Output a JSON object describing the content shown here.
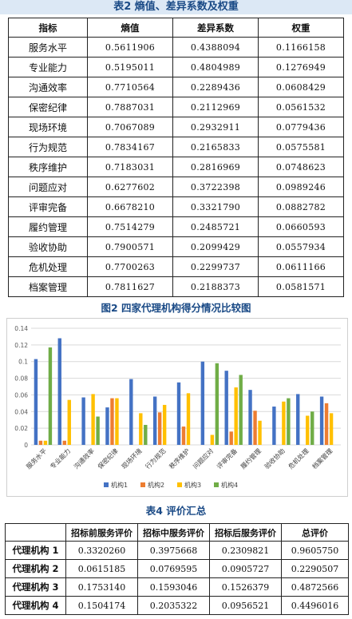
{
  "table2": {
    "caption": "表2 熵值、差异系数及权重",
    "headers": [
      "指标",
      "熵值",
      "差异系数",
      "权重"
    ],
    "rows": [
      [
        "服务水平",
        "0.5611906",
        "0.4388094",
        "0.1166158"
      ],
      [
        "专业能力",
        "0.5195011",
        "0.4804989",
        "0.1276949"
      ],
      [
        "沟通效率",
        "0.7710564",
        "0.2289436",
        "0.0608429"
      ],
      [
        "保密纪律",
        "0.7887031",
        "0.2112969",
        "0.0561532"
      ],
      [
        "现场环境",
        "0.7067089",
        "0.2932911",
        "0.0779436"
      ],
      [
        "行为规范",
        "0.7834167",
        "0.2165833",
        "0.0575581"
      ],
      [
        "秩序维护",
        "0.7183031",
        "0.2816969",
        "0.0748623"
      ],
      [
        "问题应对",
        "0.6277602",
        "0.3722398",
        "0.0989246"
      ],
      [
        "评审完备",
        "0.6678210",
        "0.3321790",
        "0.0882782"
      ],
      [
        "履约管理",
        "0.7514279",
        "0.2485721",
        "0.0660593"
      ],
      [
        "验收协助",
        "0.7900571",
        "0.2099429",
        "0.0557934"
      ],
      [
        "危机处理",
        "0.7700263",
        "0.2299737",
        "0.0611166"
      ],
      [
        "档案管理",
        "0.7811627",
        "0.2188373",
        "0.0581571"
      ]
    ]
  },
  "figure2": {
    "caption": "图2 四家代理机构得分情况比较图"
  },
  "chart_data": {
    "type": "bar",
    "title": "",
    "categories": [
      "服务水平",
      "专业能力",
      "沟通效率",
      "保密纪律",
      "现场环境",
      "行为规范",
      "秩序维护",
      "问题应对",
      "评审完备",
      "履约管理",
      "验收协助",
      "危机处理",
      "档案管理"
    ],
    "series": [
      {
        "name": "机构1",
        "color": "#4472C4",
        "values": [
          0.103,
          0.128,
          0.057,
          0.045,
          0.079,
          0.058,
          0.075,
          0.1,
          0.089,
          0.066,
          0.046,
          0.061,
          0.058
        ]
      },
      {
        "name": "机构2",
        "color": "#ED7D31",
        "values": [
          0.005,
          0.005,
          0.0,
          0.056,
          0.0,
          0.039,
          0.022,
          0.0,
          0.016,
          0.041,
          0.0,
          0.0,
          0.05
        ]
      },
      {
        "name": "机构3",
        "color": "#FFC000",
        "values": [
          0.005,
          0.054,
          0.061,
          0.056,
          0.038,
          0.048,
          0.062,
          0.012,
          0.069,
          0.029,
          0.052,
          0.035,
          0.038
        ]
      },
      {
        "name": "机构4",
        "color": "#70AD47",
        "values": [
          0.117,
          0.0,
          0.034,
          0.0,
          0.024,
          0.0,
          0.0,
          0.098,
          0.084,
          0.0,
          0.056,
          0.04,
          0.0
        ]
      }
    ],
    "ylim": [
      0,
      0.14
    ],
    "yticks": [
      "0",
      "0.02",
      "0.04",
      "0.06",
      "0.08",
      "0.1",
      "0.12",
      "0.14"
    ],
    "grid": true,
    "legend": "bottom"
  },
  "table4": {
    "caption": "表4 评价汇总",
    "headers": [
      "",
      "招标前服务评价",
      "招标中服务评价",
      "招标后服务评价",
      "总评价"
    ],
    "rows": [
      [
        "代理机构 1",
        "0.3320260",
        "0.3975668",
        "0.2309821",
        "0.9605750"
      ],
      [
        "代理机构 2",
        "0.0615185",
        "0.0769595",
        "0.0905727",
        "0.2290507"
      ],
      [
        "代理机构 3",
        "0.1753140",
        "0.1593046",
        "0.1526379",
        "0.4872566"
      ],
      [
        "代理机构 4",
        "0.1504174",
        "0.2035322",
        "0.0956521",
        "0.4496016"
      ]
    ]
  }
}
